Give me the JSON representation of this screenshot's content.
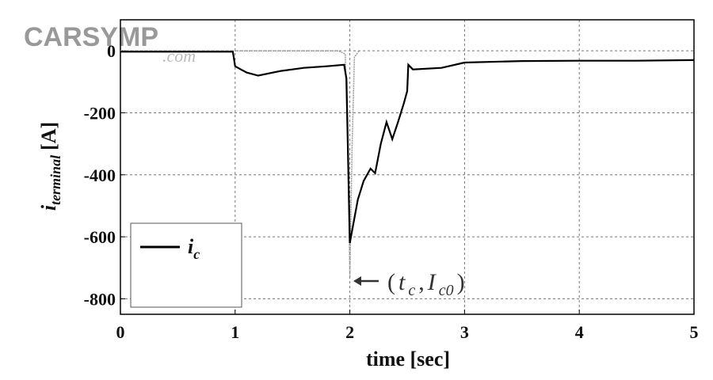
{
  "chart_data": {
    "type": "line",
    "watermark": [
      "CARSYMP",
      ".com"
    ],
    "x_label": "time [sec]",
    "y_label": {
      "main": "i",
      "subscript": "terminal",
      "unit": "[A]"
    },
    "annotation": [
      "(",
      "t",
      "c",
      ",",
      "I",
      "c0",
      ")"
    ],
    "xlim": [
      0,
      5
    ],
    "ylim": [
      -850,
      100
    ],
    "xticks": [
      0,
      1,
      2,
      3,
      4,
      5
    ],
    "yticks": [
      -800,
      -600,
      -400,
      -200,
      0
    ],
    "grid": true,
    "legend": "lower left",
    "series": [
      {
        "name": "i",
        "name_subscript": "c",
        "color": "#000000",
        "x": [
          0,
          0.5,
          0.98,
          1.0,
          1.05,
          1.1,
          1.2,
          1.4,
          1.6,
          1.8,
          1.95,
          1.97,
          2.0,
          2.03,
          2.07,
          2.12,
          2.18,
          2.22,
          2.27,
          2.32,
          2.37,
          2.42,
          2.47,
          2.5,
          2.51,
          2.55,
          2.8,
          3.0,
          3.5,
          4.0,
          4.5,
          5.0
        ],
        "values": [
          -3,
          -3,
          -3,
          -50,
          -60,
          -70,
          -80,
          -65,
          -55,
          -50,
          -45,
          -90,
          -620,
          -560,
          -480,
          -420,
          -380,
          -395,
          -300,
          -230,
          -285,
          -230,
          -170,
          -130,
          -45,
          -60,
          -55,
          -38,
          -33,
          -32,
          -32,
          -30
        ]
      },
      {
        "color": "#999999",
        "x": [
          0,
          1.9,
          1.96,
          1.98,
          2.0,
          2.02,
          2.04,
          2.08
        ],
        "values": [
          0,
          0,
          -10,
          -300,
          -730,
          -300,
          -20,
          0
        ]
      }
    ]
  }
}
